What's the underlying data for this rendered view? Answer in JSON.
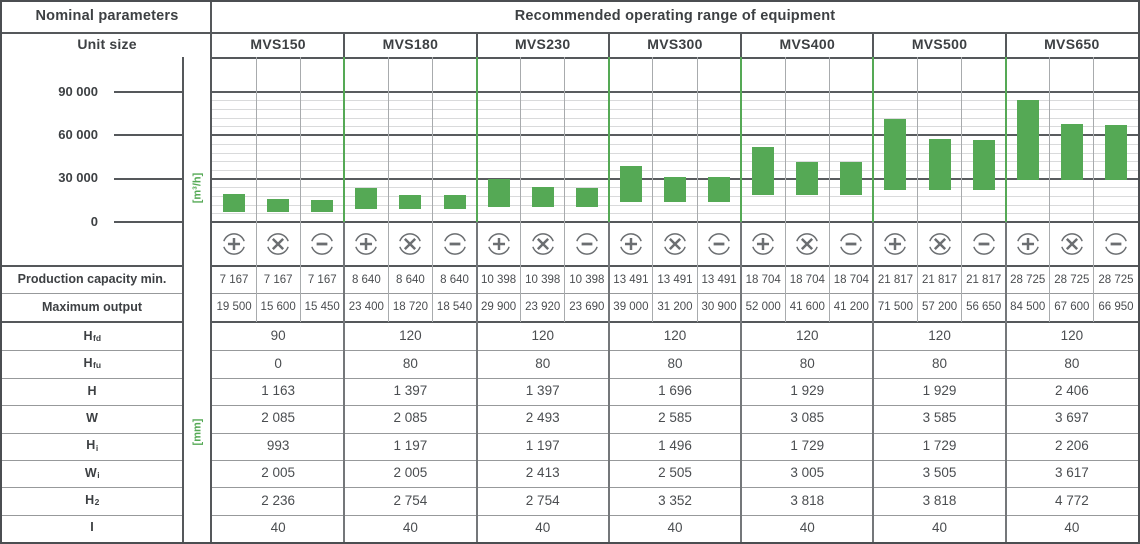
{
  "header": {
    "nominal": "Nominal parameters",
    "recommended": "Recommended operating range of equipment",
    "unit_size": "Unit size",
    "units": [
      "MVS150",
      "MVS180",
      "MVS230",
      "MVS300",
      "MVS400",
      "MVS500",
      "MVS650"
    ]
  },
  "chart_data": {
    "type": "bar",
    "title": "Recommended operating range of equipment",
    "ylabel": "[m³/h]",
    "xlabel": "",
    "ylim": [
      0,
      114000
    ],
    "yticks": [
      {
        "value": 0,
        "label": "0"
      },
      {
        "value": 30000,
        "label": "30 000"
      },
      {
        "value": 60000,
        "label": "60 000"
      },
      {
        "value": 90000,
        "label": "90 000"
      }
    ],
    "minor_grid_step": 6000,
    "minor_grid_max": 90000,
    "grid": true,
    "legend": false,
    "categories": [
      "MVS150",
      "MVS180",
      "MVS230",
      "MVS300",
      "MVS400",
      "MVS500",
      "MVS650"
    ],
    "modes": [
      "plus",
      "cross",
      "minus"
    ],
    "bars": [
      {
        "unit": "MVS150",
        "ranges": [
          [
            7167,
            19500
          ],
          [
            7167,
            15600
          ],
          [
            7167,
            15450
          ]
        ]
      },
      {
        "unit": "MVS180",
        "ranges": [
          [
            8640,
            23400
          ],
          [
            8640,
            18720
          ],
          [
            8640,
            18540
          ]
        ]
      },
      {
        "unit": "MVS230",
        "ranges": [
          [
            10398,
            29900
          ],
          [
            10398,
            23920
          ],
          [
            10398,
            23690
          ]
        ]
      },
      {
        "unit": "MVS300",
        "ranges": [
          [
            13491,
            39000
          ],
          [
            13491,
            31200
          ],
          [
            13491,
            30900
          ]
        ]
      },
      {
        "unit": "MVS400",
        "ranges": [
          [
            18704,
            52000
          ],
          [
            18704,
            41600
          ],
          [
            18704,
            41200
          ]
        ]
      },
      {
        "unit": "MVS500",
        "ranges": [
          [
            21817,
            71500
          ],
          [
            21817,
            57200
          ],
          [
            21817,
            56650
          ]
        ]
      },
      {
        "unit": "MVS650",
        "ranges": [
          [
            28725,
            84500
          ],
          [
            28725,
            67600
          ],
          [
            28725,
            66950
          ]
        ]
      }
    ],
    "bar_color": "#55a955"
  },
  "icons": {
    "per_unit": [
      "plus",
      "cross",
      "minus"
    ]
  },
  "capacity": {
    "rows": [
      {
        "label": "Production capacity min.",
        "values": [
          "7 167",
          "7 167",
          "7 167",
          "8 640",
          "8 640",
          "8 640",
          "10 398",
          "10 398",
          "10 398",
          "13 491",
          "13 491",
          "13 491",
          "18 704",
          "18 704",
          "18 704",
          "21 817",
          "21 817",
          "21 817",
          "28 725",
          "28 725",
          "28 725"
        ]
      },
      {
        "label": "Maximum output",
        "values": [
          "19 500",
          "15 600",
          "15 450",
          "23 400",
          "18 720",
          "18 540",
          "29 900",
          "23 920",
          "23 690",
          "39 000",
          "31 200",
          "30 900",
          "52 000",
          "41 600",
          "41 200",
          "71 500",
          "57 200",
          "56 650",
          "84 500",
          "67 600",
          "66 950"
        ]
      }
    ]
  },
  "dimensions": {
    "unit_label": "[mm]",
    "rows": [
      {
        "base": "H",
        "sub": "fd",
        "values": [
          "90",
          "120",
          "120",
          "120",
          "120",
          "120",
          "120"
        ]
      },
      {
        "base": "H",
        "sub": "fu",
        "values": [
          "0",
          "80",
          "80",
          "80",
          "80",
          "80",
          "80"
        ]
      },
      {
        "base": "H",
        "sub": "",
        "values": [
          "1 163",
          "1 397",
          "1 397",
          "1 696",
          "1 929",
          "1 929",
          "2 406"
        ]
      },
      {
        "base": "W",
        "sub": "",
        "values": [
          "2 085",
          "2 085",
          "2 493",
          "2 585",
          "3 085",
          "3 585",
          "3 697"
        ]
      },
      {
        "base": "H",
        "sub": "i",
        "values": [
          "993",
          "1 197",
          "1 197",
          "1 496",
          "1 729",
          "1 729",
          "2 206"
        ]
      },
      {
        "base": "W",
        "sub": "i",
        "values": [
          "2 005",
          "2 005",
          "2 413",
          "2 505",
          "3 005",
          "3 505",
          "3 617"
        ]
      },
      {
        "base": "H",
        "sub": "2",
        "values": [
          "2 236",
          "2 754",
          "2 754",
          "3 352",
          "3 818",
          "3 818",
          "4 772"
        ]
      },
      {
        "base": "I",
        "sub": "",
        "values": [
          "40",
          "40",
          "40",
          "40",
          "40",
          "40",
          "40"
        ]
      }
    ]
  },
  "colors": {
    "green": "#55a955",
    "border_dark": "#55585b",
    "border_group": "#74777a",
    "border_mid": "#97999b",
    "border_sub": "#a8abad",
    "grid_minor": "#d9dadb",
    "text": "#3d4043",
    "icon": "#6b6e71"
  }
}
